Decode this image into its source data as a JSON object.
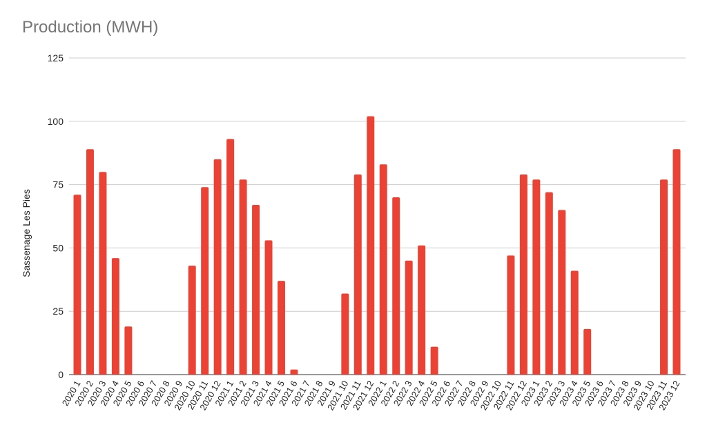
{
  "chart_data": {
    "type": "bar",
    "title": "Production (MWH)",
    "xlabel": "",
    "ylabel": "Sassenage Les Pies",
    "ylim": [
      0,
      125
    ],
    "yticks": [
      0,
      25,
      50,
      75,
      100,
      125
    ],
    "grid": true,
    "color": "#ea4335",
    "categories": [
      "2020 1",
      "2020 2",
      "2020 3",
      "2020 4",
      "2020 5",
      "2020 6",
      "2020 7",
      "2020 8",
      "2020 9",
      "2020 10",
      "2020 11",
      "2020 12",
      "2021 1",
      "2021 2",
      "2021 3",
      "2021 4",
      "2021 5",
      "2021 6",
      "2021 7",
      "2021 8",
      "2021 9",
      "2021 10",
      "2021 11",
      "2021 12",
      "2022 1",
      "2022 2",
      "2022 3",
      "2022 4",
      "2022 5",
      "2022 6",
      "2022 7",
      "2022 8",
      "2022 9",
      "2022 10",
      "2022 11",
      "2022 12",
      "2023 1",
      "2023 2",
      "2023 3",
      "2023 4",
      "2023 5",
      "2023 6",
      "2023 7",
      "2023 8",
      "2023 9",
      "2023 10",
      "2023 11",
      "2023 12"
    ],
    "values": [
      71,
      89,
      80,
      46,
      19,
      0,
      0,
      0,
      0,
      43,
      74,
      85,
      93,
      77,
      67,
      53,
      37,
      2,
      0,
      0,
      0,
      32,
      79,
      102,
      83,
      70,
      45,
      51,
      11,
      0,
      0,
      0,
      0,
      0,
      47,
      79,
      77,
      72,
      65,
      41,
      18,
      0,
      0,
      0,
      0,
      0,
      77,
      89
    ]
  }
}
